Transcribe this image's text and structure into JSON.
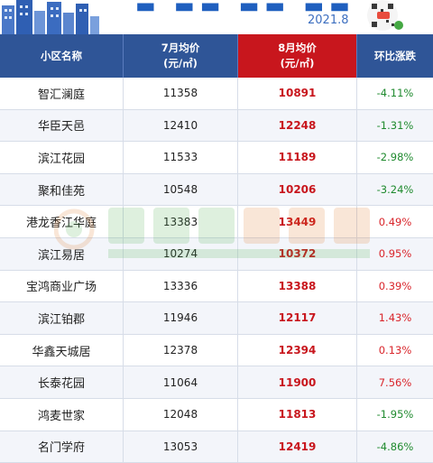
{
  "header": {
    "date": "2021.8"
  },
  "table": {
    "columns": {
      "name": "小区名称",
      "jul_line1": "7月均价",
      "jul_line2": "(元/㎡)",
      "aug_line1": "8月均价",
      "aug_line2": "(元/㎡)",
      "change": "环比涨跌"
    },
    "rows": [
      {
        "name": "智汇澜庭",
        "jul": "11358",
        "aug": "10891",
        "change": "-4.11%",
        "dir": "down"
      },
      {
        "name": "华臣天邑",
        "jul": "12410",
        "aug": "12248",
        "change": "-1.31%",
        "dir": "down"
      },
      {
        "name": "滨江花园",
        "jul": "11533",
        "aug": "11189",
        "change": "-2.98%",
        "dir": "down"
      },
      {
        "name": "聚和佳苑",
        "jul": "10548",
        "aug": "10206",
        "change": "-3.24%",
        "dir": "down"
      },
      {
        "name": "港龙香江华庭",
        "jul": "13383",
        "aug": "13449",
        "change": "0.49%",
        "dir": "up"
      },
      {
        "name": "滨江易居",
        "jul": "10274",
        "aug": "10372",
        "change": "0.95%",
        "dir": "up"
      },
      {
        "name": "宝鸿商业广场",
        "jul": "13336",
        "aug": "13388",
        "change": "0.39%",
        "dir": "up"
      },
      {
        "name": "滨江铂郡",
        "jul": "11946",
        "aug": "12117",
        "change": "1.43%",
        "dir": "up"
      },
      {
        "name": "华鑫天城居",
        "jul": "12378",
        "aug": "12394",
        "change": "0.13%",
        "dir": "up"
      },
      {
        "name": "长泰花园",
        "jul": "11064",
        "aug": "11900",
        "change": "7.56%",
        "dir": "up"
      },
      {
        "name": "鸿麦世家",
        "jul": "12048",
        "aug": "11813",
        "change": "-1.95%",
        "dir": "down"
      },
      {
        "name": "名门学府",
        "jul": "13053",
        "aug": "12419",
        "change": "-4.86%",
        "dir": "down"
      }
    ]
  },
  "colors": {
    "header_bg": "#2f5597",
    "aug_header_bg": "#c8161d",
    "aug_value": "#c8161d",
    "rise": "#d9252b",
    "fall": "#1f8a2e"
  },
  "icons": [
    "city-skyline-icon",
    "qr-code-icon",
    "watermark-logo-icon"
  ]
}
